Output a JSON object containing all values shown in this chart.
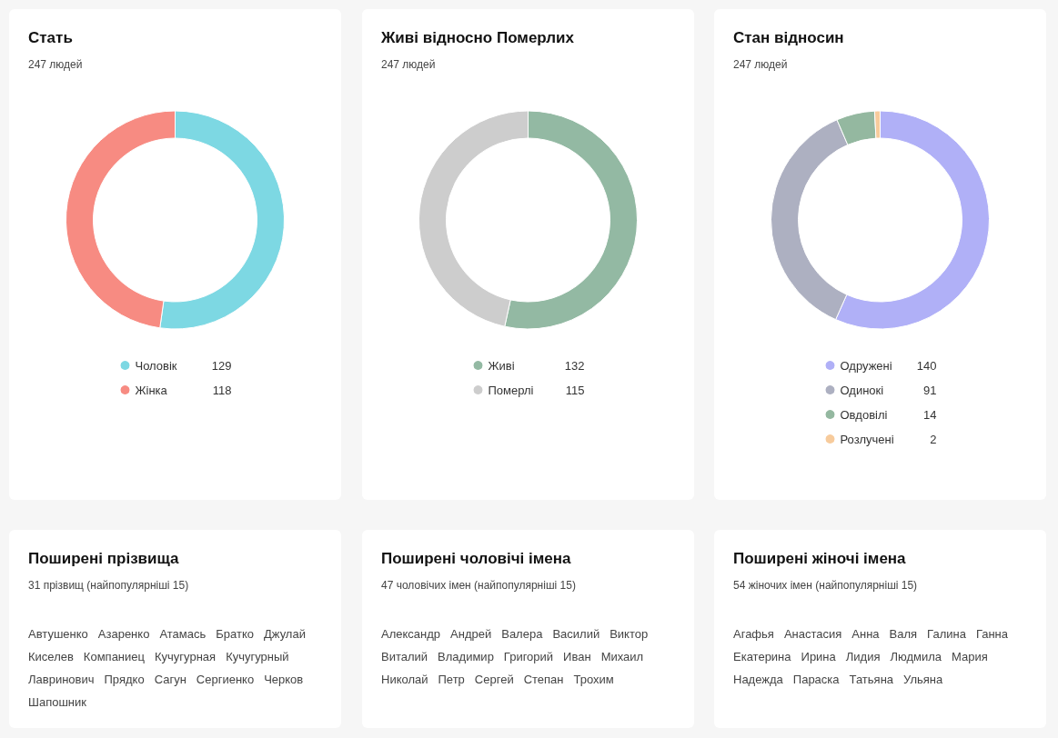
{
  "chart_data": [
    {
      "type": "donut",
      "title": "Стать",
      "subtitle": "247 людей",
      "categories": [
        "Чоловік",
        "Жінка"
      ],
      "values": [
        129,
        118
      ],
      "colors": [
        "#7dd8e3",
        "#f78b82"
      ],
      "legend": "bottom",
      "data_labels": true
    },
    {
      "type": "donut",
      "title": "Живі відносно Померлих",
      "subtitle": "247 людей",
      "categories": [
        "Живі",
        "Померлі"
      ],
      "values": [
        132,
        115
      ],
      "colors": [
        "#93b9a3",
        "#cdcdcd"
      ],
      "legend": "bottom",
      "data_labels": true
    },
    {
      "type": "donut",
      "title": "Стан відносин",
      "subtitle": "247 людей",
      "categories": [
        "Одружені",
        "Одинокі",
        "Овдовілі",
        "Розлучені"
      ],
      "values": [
        140,
        91,
        14,
        2
      ],
      "colors": [
        "#b0b0f7",
        "#adb0c1",
        "#94b8a0",
        "#f7cb9c"
      ],
      "legend": "bottom",
      "data_labels": true
    },
    {
      "type": "other",
      "title": "Поширені прізвища",
      "subtitle": "31 прізвищ (найпопулярніші 15)",
      "annotations": [
        "Автушенко",
        "Азаренко",
        "Атамась",
        "Братко",
        "Джулай",
        "Киселев",
        "Компаниец",
        "Кучугурная",
        "Кучугурный",
        "Лавринович",
        "Прядко",
        "Сагун",
        "Сергиенко",
        "Черков",
        "Шапошник"
      ]
    },
    {
      "type": "other",
      "title": "Поширені чоловічі імена",
      "subtitle": "47 чоловічих імен (найпопулярніші 15)",
      "annotations": [
        "Александр",
        "Андрей",
        "Валера",
        "Василий",
        "Виктор",
        "Виталий",
        "Владимир",
        "Григорий",
        "Иван",
        "Михаил",
        "Николай",
        "Петр",
        "Сергей",
        "Степан",
        "Трохим"
      ]
    },
    {
      "type": "other",
      "title": "Поширені жіночі імена",
      "subtitle": "54 жіночих імен (найпопулярніші 15)",
      "annotations": [
        "Агафья",
        "Анастасия",
        "Анна",
        "Валя",
        "Галина",
        "Ганна",
        "Екатерина",
        "Ирина",
        "Лидия",
        "Людмила",
        "Мария",
        "Надежда",
        "Параска",
        "Татьяна",
        "Ульяна"
      ]
    }
  ]
}
